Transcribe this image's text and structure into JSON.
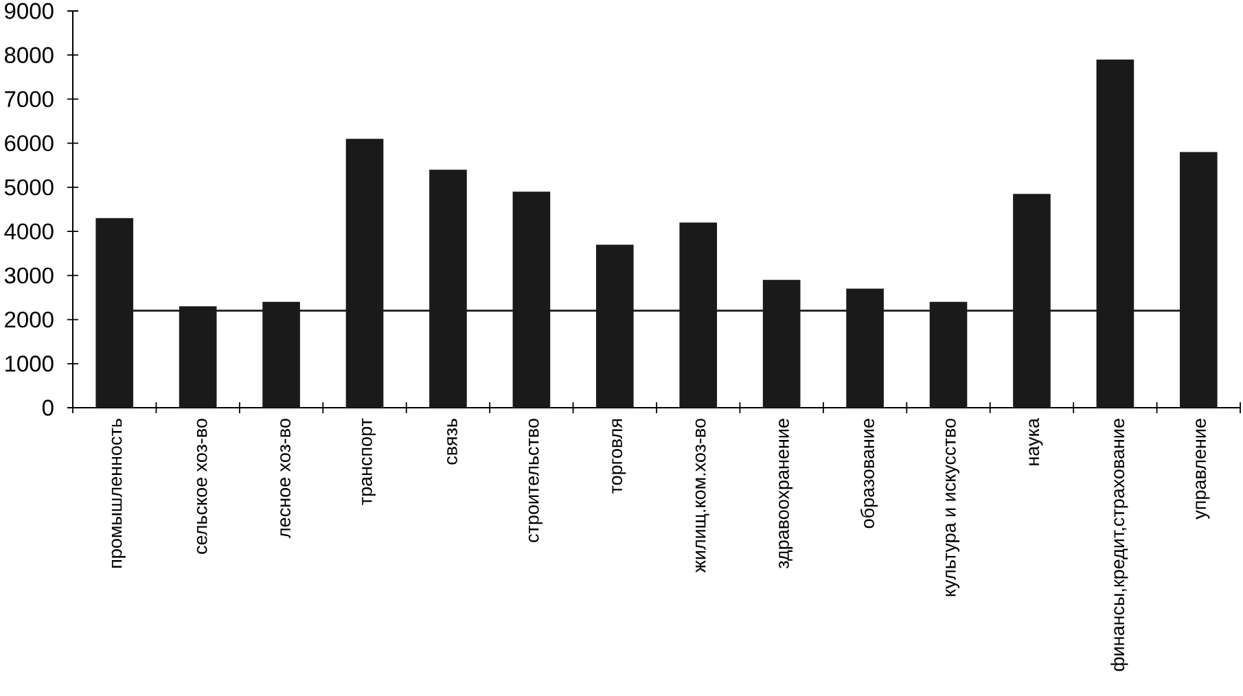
{
  "chart_data": {
    "type": "bar",
    "categories": [
      "промышленность",
      "сельское хоз-во",
      "лесное хоз-во",
      "транспорт",
      "связь",
      "строительство",
      "торговля",
      "жилищ.ком.хоз-во",
      "здравоохранение",
      "образование",
      "культура и искусство",
      "наука",
      "финансы,кредит,страхование",
      "управление"
    ],
    "values": [
      4300,
      2300,
      2400,
      6100,
      5400,
      4900,
      3700,
      4200,
      2900,
      2700,
      2400,
      4850,
      7900,
      5800
    ],
    "color": "#1a1a1a",
    "ylim": [
      0,
      9000
    ],
    "yticks": [
      0,
      1000,
      2000,
      3000,
      4000,
      5000,
      6000,
      7000,
      8000,
      9000
    ],
    "ref_lines": [
      {
        "axis": "y",
        "value": 2200,
        "color": "#1a1a1a"
      }
    ]
  }
}
